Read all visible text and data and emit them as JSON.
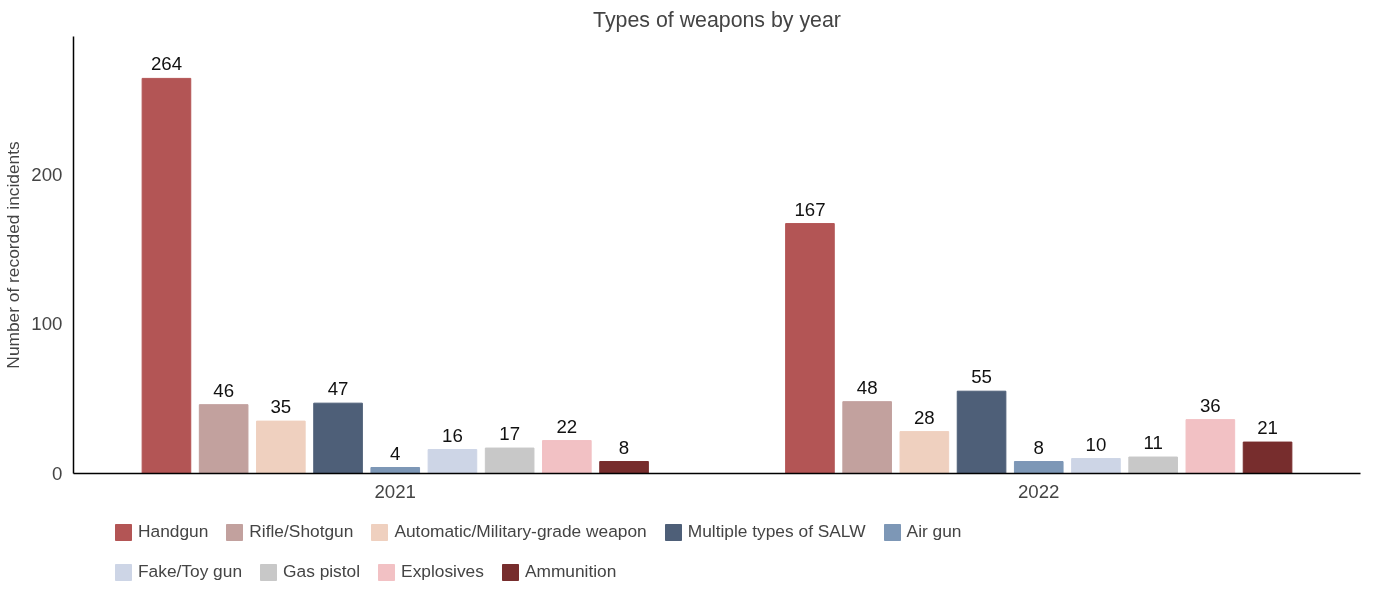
{
  "chart_data": {
    "type": "bar",
    "title": "Types of weapons by year",
    "ylabel": "Number of recorded incidents",
    "categories": [
      "2021",
      "2022"
    ],
    "series": [
      {
        "name": "Handgun",
        "color": "#b35555",
        "values": [
          264,
          167
        ]
      },
      {
        "name": "Rifle/Shotgun",
        "color": "#c2a19e",
        "values": [
          46,
          48
        ]
      },
      {
        "name": "Automatic/Military-grade weapon",
        "color": "#efd0bf",
        "values": [
          35,
          28
        ]
      },
      {
        "name": "Multiple types of SALW",
        "color": "#4e5f78",
        "values": [
          47,
          55
        ]
      },
      {
        "name": "Air gun",
        "color": "#7d97b6",
        "values": [
          4,
          8
        ]
      },
      {
        "name": "Fake/Toy gun",
        "color": "#cdd5e6",
        "values": [
          16,
          10
        ]
      },
      {
        "name": "Gas pistol",
        "color": "#c8c8c8",
        "values": [
          17,
          11
        ]
      },
      {
        "name": "Explosives",
        "color": "#f2c1c4",
        "values": [
          22,
          36
        ]
      },
      {
        "name": "Ammunition",
        "color": "#772d2d",
        "values": [
          8,
          21
        ]
      }
    ],
    "ylim": [
      0,
      292
    ],
    "yticks": [
      0,
      100,
      200
    ],
    "grid": false,
    "legend": "bottom",
    "data_labels": true
  }
}
